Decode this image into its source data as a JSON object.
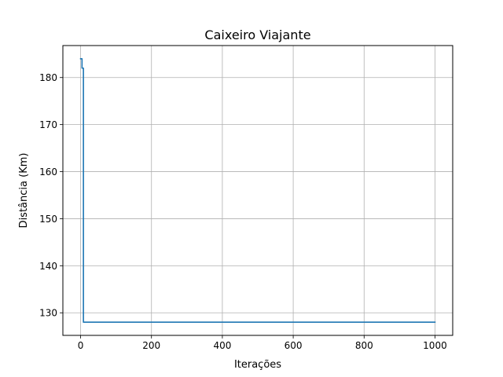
{
  "chart_data": {
    "type": "line",
    "title": "Caixeiro Viajante",
    "xlabel": "Iterações",
    "ylabel": "Distância (Km)",
    "xlim": [
      -50,
      1050
    ],
    "ylim": [
      125.2,
      186.8
    ],
    "xticks": [
      0,
      200,
      400,
      600,
      800,
      1000
    ],
    "yticks": [
      130,
      140,
      150,
      160,
      170,
      180
    ],
    "grid": true,
    "line_color": "#1f77b4",
    "series": [
      {
        "x": [
          0,
          4,
          4,
          8,
          8,
          1000
        ],
        "y": [
          184,
          184,
          182,
          182,
          128,
          128
        ]
      }
    ]
  }
}
